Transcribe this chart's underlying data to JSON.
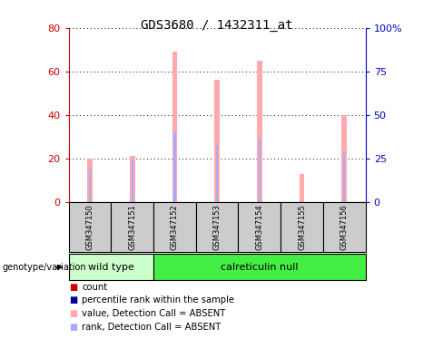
{
  "title": "GDS3680 / 1432311_at",
  "samples": [
    "GSM347150",
    "GSM347151",
    "GSM347152",
    "GSM347153",
    "GSM347154",
    "GSM347155",
    "GSM347156"
  ],
  "pink_bar_heights": [
    20,
    21,
    69,
    56,
    65,
    13,
    40
  ],
  "blue_bar_heights": [
    15,
    19,
    32,
    26,
    29,
    0,
    23
  ],
  "ylim_left": [
    0,
    80
  ],
  "ylim_right": [
    0,
    100
  ],
  "yticks_left": [
    0,
    20,
    40,
    60,
    80
  ],
  "yticks_right": [
    0,
    25,
    50,
    75,
    100
  ],
  "yticklabels_right": [
    "0",
    "25",
    "50",
    "75",
    "100%"
  ],
  "wild_type_label": "wild type",
  "calreticulin_label": "calreticulin null",
  "genotype_label": "genotype/variation",
  "legend_items": [
    {
      "color": "#cc0000",
      "label": "count"
    },
    {
      "color": "#000099",
      "label": "percentile rank within the sample"
    },
    {
      "color": "#ffaaaa",
      "label": "value, Detection Call = ABSENT"
    },
    {
      "color": "#aaaaff",
      "label": "rank, Detection Call = ABSENT"
    }
  ],
  "pink_color": "#ffaaaa",
  "blue_color": "#aaaaff",
  "wild_type_bg": "#ccffcc",
  "calreticulin_bg": "#44ee44",
  "sample_box_color": "#cccccc",
  "left_axis_color": "#cc0000",
  "right_axis_color": "#0000cc",
  "bar_width": 0.12
}
